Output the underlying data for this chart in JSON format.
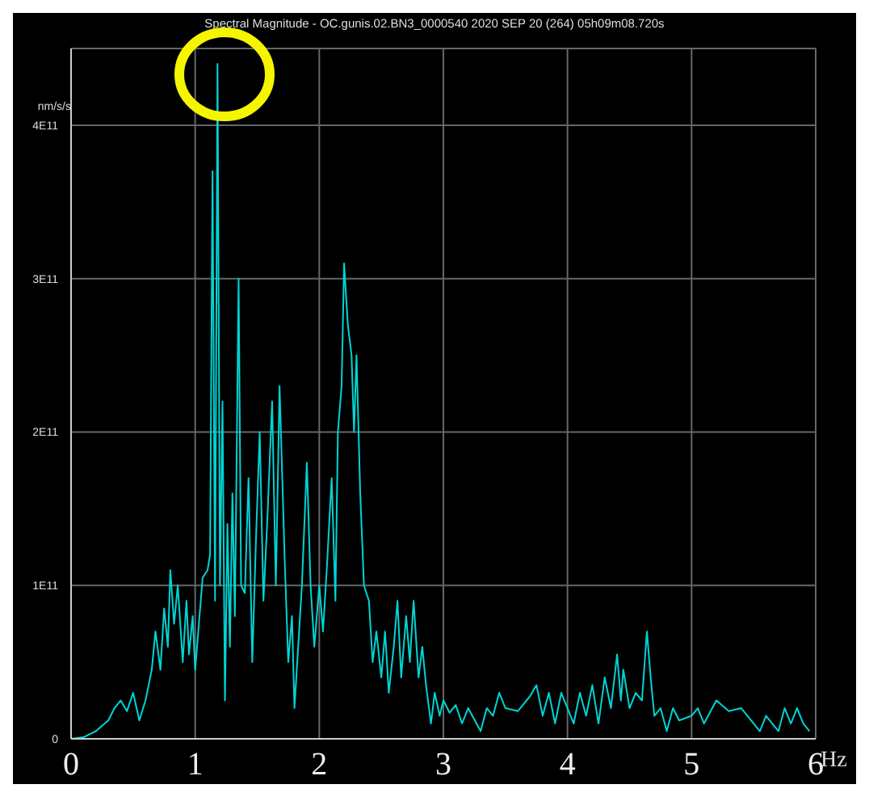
{
  "chart_data": {
    "type": "line",
    "title": "Spectral Magnitude - OC.gunis.02.BN3_0000540 2020 SEP 20 (264) 05h09m08.720s",
    "xlabel": "Hz",
    "ylabel": "nm/s/s",
    "xlim": [
      0,
      6
    ],
    "xticks": [
      0,
      1,
      2,
      3,
      4,
      5,
      6
    ],
    "ylim": [
      0,
      450000000000.0
    ],
    "yticks": [
      0,
      {
        "value": 100000000000.0,
        "label": "1E11"
      },
      {
        "value": 200000000000.0,
        "label": "2E11"
      },
      {
        "value": 300000000000.0,
        "label": "3E11"
      },
      {
        "value": 400000000000.0,
        "label": "4E11"
      }
    ],
    "grid": true,
    "marker": "none",
    "series": [
      {
        "color": "#00d4d4",
        "x": [
          0,
          0.1,
          0.2,
          0.3,
          0.35,
          0.4,
          0.45,
          0.5,
          0.55,
          0.6,
          0.65,
          0.68,
          0.72,
          0.75,
          0.78,
          0.8,
          0.83,
          0.86,
          0.9,
          0.93,
          0.95,
          0.98,
          1.0,
          1.03,
          1.06,
          1.1,
          1.12,
          1.14,
          1.16,
          1.18,
          1.2,
          1.22,
          1.24,
          1.26,
          1.28,
          1.3,
          1.32,
          1.35,
          1.37,
          1.4,
          1.43,
          1.46,
          1.49,
          1.52,
          1.55,
          1.58,
          1.62,
          1.65,
          1.68,
          1.72,
          1.75,
          1.78,
          1.8,
          1.83,
          1.86,
          1.9,
          1.93,
          1.96,
          2.0,
          2.03,
          2.06,
          2.1,
          2.13,
          2.15,
          2.18,
          2.2,
          2.23,
          2.26,
          2.28,
          2.3,
          2.33,
          2.36,
          2.4,
          2.43,
          2.46,
          2.5,
          2.53,
          2.56,
          2.6,
          2.63,
          2.66,
          2.7,
          2.73,
          2.76,
          2.8,
          2.83,
          2.86,
          2.9,
          2.93,
          2.97,
          3.0,
          3.05,
          3.1,
          3.15,
          3.2,
          3.3,
          3.35,
          3.4,
          3.45,
          3.5,
          3.6,
          3.7,
          3.75,
          3.8,
          3.85,
          3.9,
          3.95,
          4.0,
          4.05,
          4.1,
          4.15,
          4.2,
          4.25,
          4.3,
          4.35,
          4.4,
          4.43,
          4.45,
          4.5,
          4.55,
          4.6,
          4.64,
          4.67,
          4.7,
          4.75,
          4.8,
          4.85,
          4.9,
          5.0,
          5.05,
          5.1,
          5.2,
          5.3,
          5.4,
          5.5,
          5.55,
          5.6,
          5.7,
          5.75,
          5.8,
          5.85,
          5.9,
          5.95
        ],
        "values": [
          0,
          1000000000.0,
          5000000000.0,
          12000000000.0,
          20000000000.0,
          25000000000.0,
          18000000000.0,
          30000000000.0,
          12000000000.0,
          25000000000.0,
          45000000000.0,
          70000000000.0,
          45000000000.0,
          85000000000.0,
          60000000000.0,
          110000000000.0,
          75000000000.0,
          100000000000.0,
          50000000000.0,
          90000000000.0,
          55000000000.0,
          80000000000.0,
          45000000000.0,
          75000000000.0,
          105000000000.0,
          110000000000.0,
          120000000000.0,
          370000000000.0,
          90000000000.0,
          440000000000.0,
          100000000000.0,
          220000000000.0,
          25000000000.0,
          140000000000.0,
          60000000000.0,
          160000000000.0,
          80000000000.0,
          300000000000.0,
          100000000000.0,
          95000000000.0,
          170000000000.0,
          50000000000.0,
          130000000000.0,
          200000000000.0,
          90000000000.0,
          140000000000.0,
          220000000000.0,
          100000000000.0,
          230000000000.0,
          120000000000.0,
          50000000000.0,
          80000000000.0,
          20000000000.0,
          60000000000.0,
          100000000000.0,
          180000000000.0,
          100000000000.0,
          60000000000.0,
          100000000000.0,
          70000000000.0,
          110000000000.0,
          170000000000.0,
          90000000000.0,
          200000000000.0,
          230000000000.0,
          310000000000.0,
          270000000000.0,
          250000000000.0,
          200000000000.0,
          250000000000.0,
          160000000000.0,
          100000000000.0,
          90000000000.0,
          50000000000.0,
          70000000000.0,
          40000000000.0,
          70000000000.0,
          30000000000.0,
          60000000000.0,
          90000000000.0,
          40000000000.0,
          80000000000.0,
          50000000000.0,
          90000000000.0,
          40000000000.0,
          60000000000.0,
          35000000000.0,
          10000000000.0,
          30000000000.0,
          15000000000.0,
          25000000000.0,
          17000000000.0,
          22000000000.0,
          10000000000.0,
          20000000000.0,
          5000000000.0,
          20000000000.0,
          15000000000.0,
          30000000000.0,
          20000000000.0,
          18000000000.0,
          28000000000.0,
          35000000000.0,
          15000000000.0,
          30000000000.0,
          10000000000.0,
          30000000000.0,
          20000000000.0,
          10000000000.0,
          30000000000.0,
          15000000000.0,
          35000000000.0,
          10000000000.0,
          40000000000.0,
          20000000000.0,
          55000000000.0,
          25000000000.0,
          45000000000.0,
          20000000000.0,
          30000000000.0,
          25000000000.0,
          70000000000.0,
          40000000000.0,
          15000000000.0,
          20000000000.0,
          5000000000.0,
          20000000000.0,
          12000000000.0,
          15000000000.0,
          20000000000.0,
          10000000000.0,
          25000000000.0,
          18000000000.0,
          20000000000.0,
          10000000000.0,
          5000000000.0,
          15000000000.0,
          5000000000.0,
          20000000000.0,
          10000000000.0,
          20000000000.0,
          10000000000.0,
          5000000000.0
        ]
      }
    ]
  }
}
